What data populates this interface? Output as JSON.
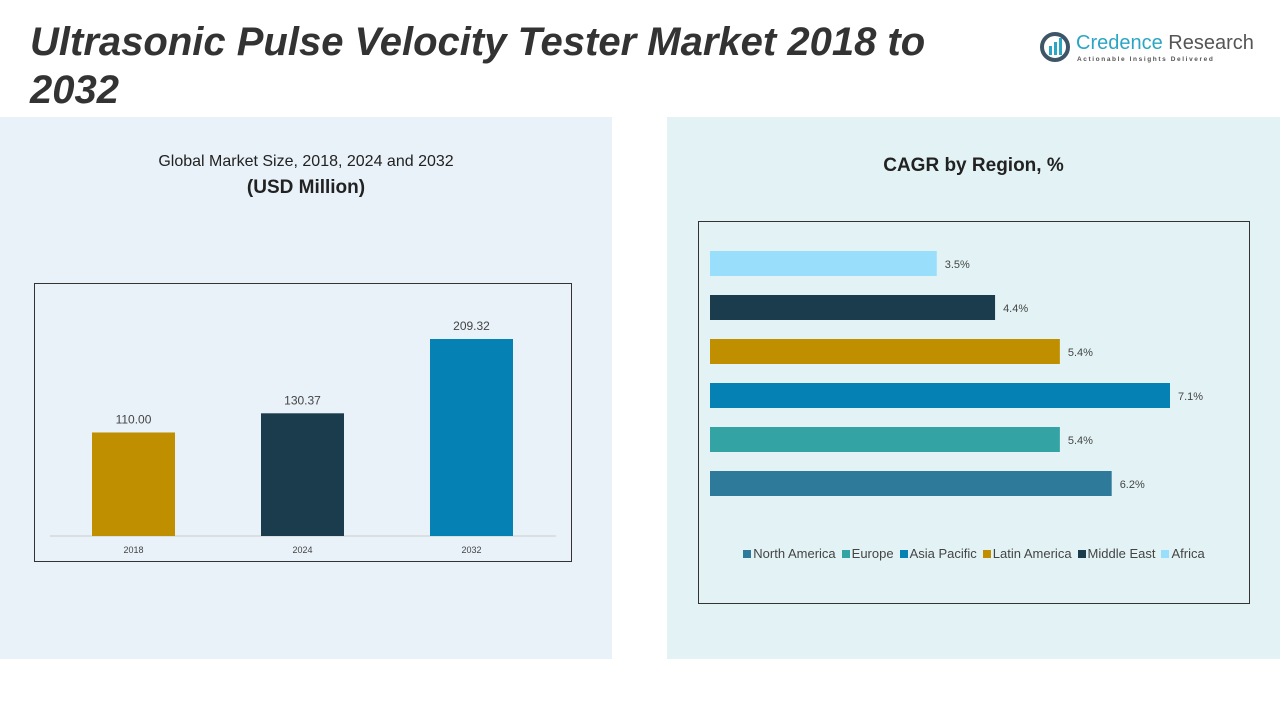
{
  "title": "Ultrasonic Pulse Velocity Tester Market 2018 to 2032",
  "logo": {
    "name_a": "Credence",
    "name_b": "Research",
    "tagline": "Actionable Insights Delivered"
  },
  "left": {
    "subtitle": "Global Market Size, 2018, 2024 and 2032",
    "unit": "(USD Million)"
  },
  "right": {
    "title": "CAGR by Region, %"
  },
  "chart_data": [
    {
      "type": "bar",
      "title": "Global Market Size, 2018, 2024 and 2032",
      "ylabel": "(USD Million)",
      "categories": [
        "2018",
        "2024",
        "2032"
      ],
      "values": [
        110.0,
        130.37,
        209.32
      ],
      "labels": [
        "110.00",
        "130.37",
        "209.32"
      ],
      "colors": [
        "#bf8f00",
        "#1a3c4d",
        "#0581b4"
      ],
      "ylim": [
        0,
        230
      ],
      "grid": false
    },
    {
      "type": "bar",
      "orientation": "horizontal",
      "title": "CAGR by Region, %",
      "categories": [
        "Africa",
        "Middle East",
        "Latin America",
        "Asia Pacific",
        "Europe",
        "North America"
      ],
      "values": [
        3.5,
        4.4,
        5.4,
        7.1,
        5.4,
        6.2
      ],
      "labels": [
        "3.5%",
        "4.4%",
        "5.4%",
        "7.1%",
        "5.4%",
        "6.2%"
      ],
      "colors": [
        "#99defa",
        "#1a3c4d",
        "#bf8f00",
        "#0581b4",
        "#33a3a3",
        "#2e7a9a"
      ],
      "legend": {
        "position": "bottom",
        "items": [
          "North America",
          "Europe",
          "Asia Pacific",
          "Latin America",
          "Middle East",
          "Africa"
        ],
        "colors": [
          "#2e7a9a",
          "#33a3a3",
          "#0581b4",
          "#bf8f00",
          "#1a3c4d",
          "#99defa"
        ]
      },
      "grid": false
    }
  ]
}
